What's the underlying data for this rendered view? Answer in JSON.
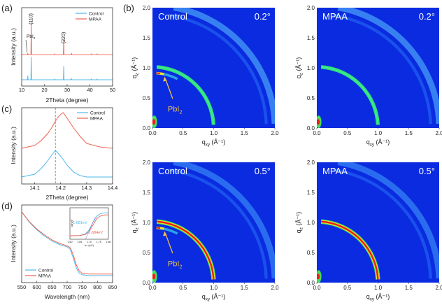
{
  "panel_labels": {
    "a": "(a)",
    "b": "(b)",
    "c": "(c)",
    "d": "(d)"
  },
  "colors": {
    "control": "#4fb8e8",
    "mpaa": "#f0624f",
    "giwaxs_bg": "#0a2be0",
    "annotation": "#f2c14e"
  },
  "chart_data": [
    {
      "id": "a",
      "type": "line",
      "xlabel": "2Theta (degree)",
      "ylabel": "Intensity (a.u.)",
      "xlim": [
        10,
        50
      ],
      "xticks": [
        10,
        20,
        30,
        40,
        50
      ],
      "legend": {
        "placement": "top-right",
        "entries": [
          "Control",
          "MPAA"
        ]
      },
      "annotations": [
        {
          "text": "(110)",
          "x": 14.2
        },
        {
          "text": "(220)",
          "x": 28.5
        },
        {
          "text": "PbI",
          "sub": "2",
          "x": 12.7
        }
      ],
      "series": [
        {
          "name": "Control",
          "offset": 0,
          "peaks": [
            [
              12.7,
              0.18
            ],
            [
              14.2,
              1.0
            ],
            [
              24.5,
              0.03
            ],
            [
              28.5,
              0.6
            ],
            [
              31.9,
              0.06
            ],
            [
              40.6,
              0.03
            ],
            [
              43.2,
              0.03
            ]
          ]
        },
        {
          "name": "MPAA",
          "offset": 1.09,
          "peaks": [
            [
              12.7,
              0.06
            ],
            [
              14.2,
              1.42
            ],
            [
              24.5,
              0.03
            ],
            [
              28.5,
              0.67
            ],
            [
              31.9,
              0.06
            ],
            [
              40.6,
              0.03
            ],
            [
              43.2,
              0.03
            ]
          ]
        }
      ]
    },
    {
      "id": "c",
      "type": "line",
      "xlabel": "2Theta (degree)",
      "ylabel": "Intensity (a.u.)",
      "xlim": [
        14.05,
        14.4
      ],
      "xticks": [
        14.1,
        14.2,
        14.3,
        14.4
      ],
      "reference_line": 14.18,
      "legend": {
        "placement": "top-right",
        "entries": [
          "Control",
          "MPAA"
        ]
      },
      "x": [
        14.05,
        14.1,
        14.125,
        14.15,
        14.165,
        14.18,
        14.195,
        14.21,
        14.225,
        14.25,
        14.275,
        14.3,
        14.35,
        14.4
      ],
      "series": [
        {
          "name": "Control",
          "values": [
            0.1,
            0.14,
            0.22,
            0.33,
            0.41,
            0.48,
            0.42,
            0.35,
            0.27,
            0.17,
            0.12,
            0.1,
            0.1,
            0.1
          ]
        },
        {
          "name": "MPAA",
          "values": [
            0.51,
            0.55,
            0.62,
            0.72,
            0.8,
            0.9,
            0.98,
            1.02,
            0.94,
            0.8,
            0.68,
            0.58,
            0.53,
            0.51
          ]
        }
      ]
    },
    {
      "id": "d",
      "type": "line",
      "xlabel": "Wavelength (nm)",
      "ylabel": "Intensity (a.u.)",
      "xlim": [
        550,
        850
      ],
      "xticks": [
        550,
        600,
        650,
        700,
        750,
        800,
        850
      ],
      "legend": {
        "placement": "bottom-left",
        "entries": [
          "Control",
          "MPAA"
        ]
      },
      "x": [
        550,
        575,
        600,
        625,
        650,
        675,
        700,
        710,
        720,
        730,
        740,
        750,
        775,
        800,
        850
      ],
      "series": [
        {
          "name": "Control",
          "values": [
            0.91,
            0.78,
            0.68,
            0.6,
            0.535,
            0.49,
            0.46,
            0.43,
            0.32,
            0.19,
            0.12,
            0.1,
            0.09,
            0.09,
            0.09
          ]
        },
        {
          "name": "MPAA",
          "values": [
            0.91,
            0.785,
            0.69,
            0.615,
            0.55,
            0.505,
            0.475,
            0.45,
            0.36,
            0.23,
            0.15,
            0.12,
            0.11,
            0.11,
            0.11
          ]
        }
      ],
      "inset": {
        "type": "line",
        "xlabel": "hν (eV)",
        "ylabel": "(αhν)²",
        "xlim": [
          1.6,
          1.8
        ],
        "xticks": [
          "1.60",
          "1.65",
          "1.70",
          "1.75",
          "1.80"
        ],
        "bandgaps": [
          {
            "name": "Control",
            "label": "1.681eV",
            "value": 1.681
          },
          {
            "name": "MPAA",
            "label": "1.684eV",
            "value": 1.684
          }
        ]
      }
    },
    {
      "id": "b",
      "type": "heatmap",
      "xlabel": "q",
      "xlabel_sub": "xy",
      "ylabel": "q",
      "ylabel_sub": "z",
      "unit": "(Å⁻¹)",
      "xlim": [
        0,
        2.0
      ],
      "ylim": [
        0,
        2.0
      ],
      "ticks": [
        "0.0",
        "0.5",
        "1.0",
        "1.5",
        "2.0"
      ],
      "panels": [
        {
          "sample": "Control",
          "angle": "0.2°",
          "pbi2": true,
          "annotation": "PbI",
          "annotation_sub": "2",
          "ring_intensity": "medium"
        },
        {
          "sample": "MPAA",
          "angle": "0.2°",
          "pbi2": false,
          "ring_intensity": "medium"
        },
        {
          "sample": "Control",
          "angle": "0.5°",
          "pbi2": true,
          "annotation": "PbI",
          "annotation_sub": "2",
          "ring_intensity": "high"
        },
        {
          "sample": "MPAA",
          "angle": "0.5°",
          "pbi2": false,
          "ring_intensity": "high"
        }
      ],
      "rings_q": [
        0.9,
        1.0,
        1.9,
        2.0
      ]
    }
  ]
}
